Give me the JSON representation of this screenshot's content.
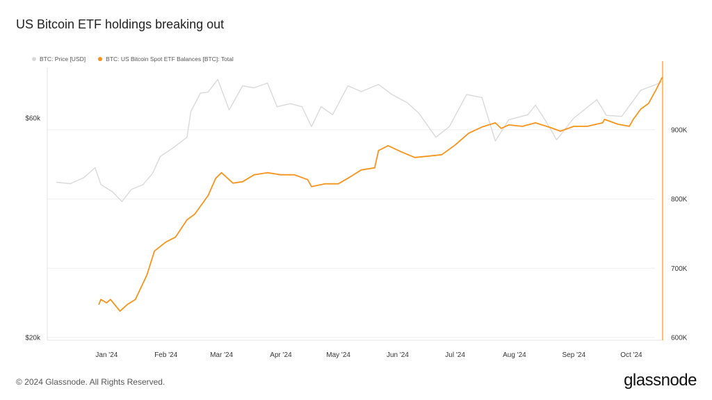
{
  "title": "US Bitcoin ETF holdings breaking out",
  "footer": "© 2024 Glassnode. All Rights Reserved.",
  "brand": "glassnode",
  "legend": [
    {
      "label": "BTC: Price [USD]",
      "color": "#d9d9d9"
    },
    {
      "label": "BTC: US Bitcoin Spot ETF Balances [BTC]: Total",
      "color": "#f7931a"
    }
  ],
  "chart_data": {
    "type": "line",
    "title": "US Bitcoin ETF holdings breaking out",
    "x_tick_labels": [
      "Jan '24",
      "Feb '24",
      "Mar '24",
      "Apr '24",
      "May '24",
      "Jun '24",
      "Jul '24",
      "Aug '24",
      "Sep '24",
      "Oct '24"
    ],
    "left_axis": {
      "tick_labels": [
        "$20k",
        "$60k"
      ],
      "ticks": [
        20000,
        60000
      ],
      "scale": "log"
    },
    "right_axis": {
      "tick_labels": [
        "600K",
        "700K",
        "800K",
        "900K"
      ],
      "ticks": [
        600000,
        700000,
        800000,
        900000
      ],
      "range": [
        600000,
        1000000
      ]
    },
    "legend_position": "top-left",
    "grid": true,
    "series": [
      {
        "name": "BTC: Price [USD]",
        "color": "#d9d9d9",
        "axis": "left",
        "points": [
          [
            "2023-12-20",
            43500
          ],
          [
            "2023-12-27",
            43200
          ],
          [
            "2024-01-03",
            44500
          ],
          [
            "2024-01-09",
            46800
          ],
          [
            "2024-01-12",
            43000
          ],
          [
            "2024-01-18",
            41500
          ],
          [
            "2024-01-23",
            39500
          ],
          [
            "2024-01-28",
            42000
          ],
          [
            "2024-02-03",
            43000
          ],
          [
            "2024-02-08",
            45500
          ],
          [
            "2024-02-12",
            49500
          ],
          [
            "2024-02-19",
            51800
          ],
          [
            "2024-02-26",
            54500
          ],
          [
            "2024-02-28",
            62000
          ],
          [
            "2024-03-04",
            68000
          ],
          [
            "2024-03-08",
            68300
          ],
          [
            "2024-03-13",
            72800
          ],
          [
            "2024-03-19",
            62500
          ],
          [
            "2024-03-26",
            70500
          ],
          [
            "2024-04-01",
            69800
          ],
          [
            "2024-04-08",
            71500
          ],
          [
            "2024-04-13",
            63500
          ],
          [
            "2024-04-20",
            64500
          ],
          [
            "2024-04-26",
            63500
          ],
          [
            "2024-05-01",
            57500
          ],
          [
            "2024-05-06",
            63500
          ],
          [
            "2024-05-12",
            61000
          ],
          [
            "2024-05-20",
            70500
          ],
          [
            "2024-05-27",
            68500
          ],
          [
            "2024-06-05",
            71000
          ],
          [
            "2024-06-12",
            67500
          ],
          [
            "2024-06-20",
            64800
          ],
          [
            "2024-06-26",
            61500
          ],
          [
            "2024-07-05",
            54500
          ],
          [
            "2024-07-12",
            57500
          ],
          [
            "2024-07-21",
            67500
          ],
          [
            "2024-07-29",
            66500
          ],
          [
            "2024-08-05",
            53500
          ],
          [
            "2024-08-12",
            59500
          ],
          [
            "2024-08-22",
            61000
          ],
          [
            "2024-08-26",
            64000
          ],
          [
            "2024-09-01",
            58500
          ],
          [
            "2024-09-06",
            53800
          ],
          [
            "2024-09-15",
            60000
          ],
          [
            "2024-09-27",
            65800
          ],
          [
            "2024-10-02",
            60800
          ],
          [
            "2024-10-10",
            60500
          ],
          [
            "2024-10-20",
            69000
          ],
          [
            "2024-10-28",
            71000
          ],
          [
            "2024-10-31",
            72000
          ]
        ]
      },
      {
        "name": "BTC: US Bitcoin Spot ETF Balances [BTC]: Total",
        "color": "#f7931a",
        "axis": "right",
        "points": [
          [
            "2024-01-11",
            648000
          ],
          [
            "2024-01-12",
            655000
          ],
          [
            "2024-01-15",
            650000
          ],
          [
            "2024-01-17",
            655000
          ],
          [
            "2024-01-22",
            638000
          ],
          [
            "2024-01-26",
            648000
          ],
          [
            "2024-01-30",
            655000
          ],
          [
            "2024-02-05",
            690000
          ],
          [
            "2024-02-09",
            725000
          ],
          [
            "2024-02-15",
            738000
          ],
          [
            "2024-02-20",
            745000
          ],
          [
            "2024-02-26",
            770000
          ],
          [
            "2024-03-01",
            778000
          ],
          [
            "2024-03-08",
            805000
          ],
          [
            "2024-03-12",
            830000
          ],
          [
            "2024-03-15",
            838000
          ],
          [
            "2024-03-21",
            823000
          ],
          [
            "2024-03-26",
            825000
          ],
          [
            "2024-04-01",
            835000
          ],
          [
            "2024-04-08",
            838000
          ],
          [
            "2024-04-15",
            835000
          ],
          [
            "2024-04-22",
            835000
          ],
          [
            "2024-04-29",
            828000
          ],
          [
            "2024-05-01",
            818000
          ],
          [
            "2024-05-08",
            822000
          ],
          [
            "2024-05-15",
            822000
          ],
          [
            "2024-05-20",
            830000
          ],
          [
            "2024-05-27",
            842000
          ],
          [
            "2024-06-03",
            845000
          ],
          [
            "2024-06-05",
            870000
          ],
          [
            "2024-06-10",
            877000
          ],
          [
            "2024-06-17",
            868000
          ],
          [
            "2024-06-24",
            860000
          ],
          [
            "2024-07-01",
            862000
          ],
          [
            "2024-07-08",
            864000
          ],
          [
            "2024-07-15",
            878000
          ],
          [
            "2024-07-22",
            895000
          ],
          [
            "2024-07-29",
            904000
          ],
          [
            "2024-08-05",
            910000
          ],
          [
            "2024-08-08",
            902000
          ],
          [
            "2024-08-12",
            907000
          ],
          [
            "2024-08-19",
            905000
          ],
          [
            "2024-08-26",
            910000
          ],
          [
            "2024-09-03",
            903000
          ],
          [
            "2024-09-08",
            898000
          ],
          [
            "2024-09-15",
            905000
          ],
          [
            "2024-09-22",
            905000
          ],
          [
            "2024-09-30",
            910000
          ],
          [
            "2024-10-01",
            915000
          ],
          [
            "2024-10-08",
            908000
          ],
          [
            "2024-10-14",
            905000
          ],
          [
            "2024-10-16",
            915000
          ],
          [
            "2024-10-20",
            930000
          ],
          [
            "2024-10-24",
            938000
          ],
          [
            "2024-10-28",
            958000
          ],
          [
            "2024-10-31",
            975000
          ]
        ]
      }
    ]
  }
}
